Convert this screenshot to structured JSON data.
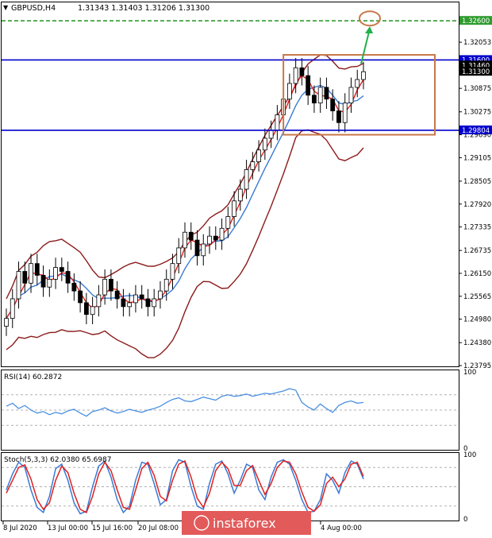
{
  "header": {
    "symbol": "GBPUSD,H4",
    "ohlc": "1.31343 1.31403 1.31206 1.31300"
  },
  "chart_data": [
    {
      "type": "candlestick",
      "symbol": "GBPUSD",
      "timeframe": "H4",
      "ylim": [
        1.23795,
        1.3305
      ],
      "y_ticks": [
        "1.32053",
        "1.30875",
        "1.30275",
        "1.29690",
        "1.29105",
        "1.28505",
        "1.27920",
        "1.27335",
        "1.26735",
        "1.26150",
        "1.25565",
        "1.24980",
        "1.24380",
        "1.23795"
      ],
      "x_labels": [
        "8 Jul 2020",
        "13 Jul 00:00",
        "15 Jul 16:00",
        "20 Jul 08:00",
        "4 Aug 00:00"
      ],
      "levels": [
        {
          "value": 1.326,
          "label": "1.32600",
          "color": "#2e9b2e",
          "style": "dashed"
        },
        {
          "value": 1.316,
          "label": "1.31600",
          "color": "#0000cc",
          "style": "solid"
        },
        {
          "value": 1.29804,
          "label": "1.29804",
          "color": "#0000cc",
          "style": "solid"
        }
      ],
      "price_tags": [
        {
          "value": 1.3146,
          "label": "1.31460"
        },
        {
          "value": 1.313,
          "label": "1.31300"
        }
      ],
      "closes": [
        1.25,
        1.255,
        1.262,
        1.259,
        1.264,
        1.261,
        1.258,
        1.26,
        1.263,
        1.262,
        1.259,
        1.257,
        1.254,
        1.251,
        1.253,
        1.256,
        1.26,
        1.257,
        1.255,
        1.253,
        1.254,
        1.256,
        1.255,
        1.253,
        1.255,
        1.257,
        1.26,
        1.264,
        1.268,
        1.272,
        1.27,
        1.266,
        1.269,
        1.271,
        1.27,
        1.273,
        1.276,
        1.28,
        1.283,
        1.288,
        1.29,
        1.293,
        1.296,
        1.298,
        1.302,
        1.306,
        1.31,
        1.314,
        1.312,
        1.307,
        1.305,
        1.309,
        1.306,
        1.303,
        1.3,
        1.305,
        1.309,
        1.311,
        1.313
      ],
      "annotations": [
        "consolidation box",
        "target circle at 1.32600",
        "arrow toward target"
      ]
    },
    {
      "type": "line",
      "indicator": "RSI(14)",
      "label": "RSI(14) 60.2872",
      "ylim": [
        0,
        100
      ],
      "y_ticks": [
        "100",
        "0"
      ],
      "levels": [
        70,
        50,
        30
      ],
      "values": [
        55,
        59,
        52,
        56,
        50,
        46,
        48,
        44,
        47,
        45,
        49,
        51,
        46,
        42,
        48,
        50,
        53,
        49,
        46,
        48,
        51,
        49,
        47,
        50,
        52,
        55,
        60,
        64,
        66,
        62,
        61,
        64,
        67,
        65,
        63,
        68,
        70,
        68,
        69,
        71,
        68,
        70,
        72,
        71,
        73,
        75,
        78,
        76,
        60,
        54,
        50,
        58,
        52,
        47,
        56,
        60,
        62,
        59,
        60
      ]
    },
    {
      "type": "line",
      "indicator": "Stoch(5,3,3)",
      "label": "Stoch(5,3,3) 62.0380 65.6987",
      "ylim": [
        0,
        100
      ],
      "y_ticks": [
        "100",
        "0"
      ],
      "levels": [
        80,
        50,
        20
      ],
      "series": [
        {
          "color": "#3a7bd5",
          "values": [
            45,
            70,
            88,
            80,
            45,
            18,
            10,
            35,
            78,
            85,
            60,
            25,
            8,
            12,
            50,
            82,
            90,
            65,
            30,
            10,
            20,
            60,
            88,
            85,
            55,
            22,
            30,
            75,
            92,
            88,
            50,
            20,
            15,
            55,
            85,
            90,
            70,
            40,
            60,
            85,
            80,
            45,
            30,
            65,
            88,
            92,
            85,
            60,
            30,
            10,
            12,
            30,
            70,
            60,
            40,
            72,
            90,
            85,
            62
          ]
        },
        {
          "color": "#e02020",
          "values": [
            40,
            60,
            80,
            84,
            62,
            30,
            15,
            25,
            60,
            82,
            72,
            40,
            15,
            10,
            35,
            70,
            88,
            75,
            45,
            18,
            15,
            45,
            78,
            88,
            68,
            35,
            28,
            60,
            85,
            90,
            65,
            32,
            18,
            40,
            75,
            88,
            78,
            52,
            52,
            75,
            83,
            60,
            38,
            55,
            80,
            90,
            88,
            70,
            42,
            18,
            12,
            22,
            55,
            65,
            50,
            62,
            85,
            88,
            66
          ]
        }
      ]
    }
  ],
  "watermark": "instaforex"
}
